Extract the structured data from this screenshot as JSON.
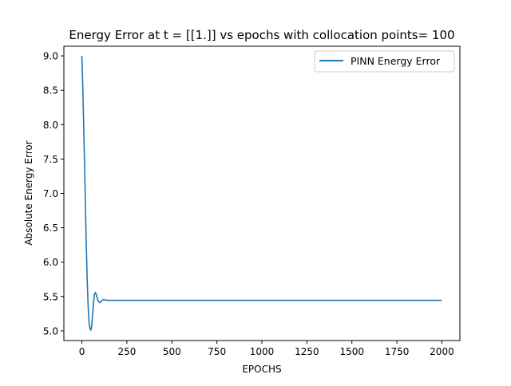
{
  "chart_data": {
    "type": "line",
    "title": "Energy Error at t = [[1.]] vs epochs with collocation points= 100",
    "xlabel": "EPOCHS",
    "ylabel": "Absolute Energy Error",
    "xlim": [
      -100,
      2100
    ],
    "ylim": [
      4.86,
      9.14
    ],
    "xticks": [
      0,
      250,
      500,
      750,
      1000,
      1250,
      1500,
      1750,
      2000
    ],
    "xtick_labels": [
      "0",
      "250",
      "500",
      "750",
      "1000",
      "1250",
      "1500",
      "1750",
      "2000"
    ],
    "yticks": [
      5.0,
      5.5,
      6.0,
      6.5,
      7.0,
      7.5,
      8.0,
      8.5,
      9.0
    ],
    "ytick_labels": [
      "5.0",
      "5.5",
      "6.0",
      "6.5",
      "7.0",
      "7.5",
      "8.0",
      "8.5",
      "9.0"
    ],
    "grid": false,
    "legend_position": "top-right",
    "series": [
      {
        "name": "PINN Energy Error",
        "color": "#1f77b4",
        "x": [
          0,
          5,
          10,
          15,
          20,
          25,
          30,
          35,
          40,
          45,
          50,
          55,
          60,
          65,
          70,
          75,
          80,
          85,
          90,
          95,
          100,
          110,
          120,
          130,
          140,
          150,
          200,
          500,
          1000,
          1500,
          2000
        ],
        "y": [
          9.0,
          8.55,
          8.0,
          7.4,
          6.8,
          6.2,
          5.7,
          5.35,
          5.12,
          5.03,
          5.01,
          5.08,
          5.25,
          5.42,
          5.53,
          5.56,
          5.53,
          5.48,
          5.44,
          5.42,
          5.41,
          5.44,
          5.455,
          5.45,
          5.445,
          5.445,
          5.445,
          5.445,
          5.445,
          5.445,
          5.445
        ]
      }
    ]
  }
}
